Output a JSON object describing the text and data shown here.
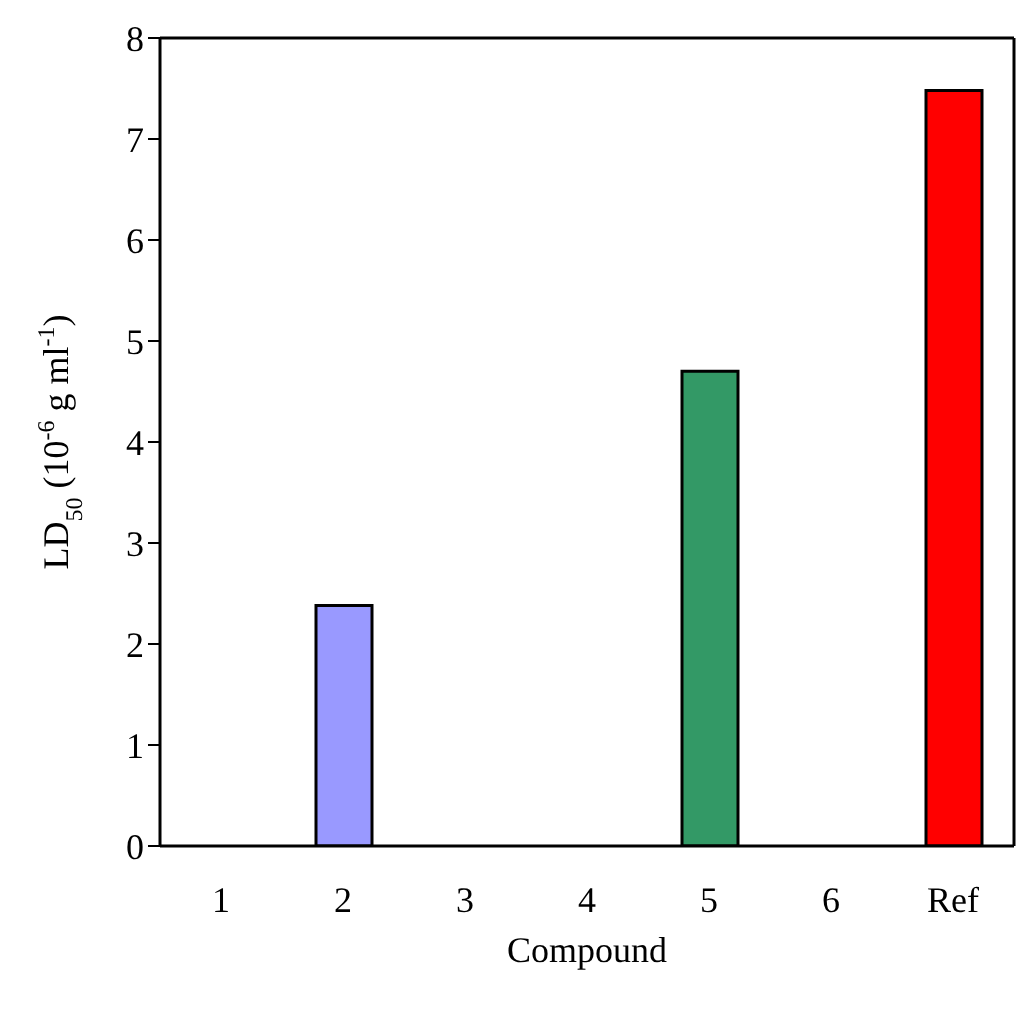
{
  "chart_data": {
    "type": "bar",
    "xlabel": "Compound",
    "ylabel": "LD$_{50}$ (10$^{-6}$ g ml$^{-1}$)",
    "categories": [
      "1",
      "2",
      "3",
      "4",
      "5",
      "6",
      "Ref"
    ],
    "values": [
      null,
      2.38,
      null,
      null,
      4.7,
      null,
      7.48
    ],
    "colors": [
      "#9999ff",
      "#9999ff",
      "#9999ff",
      "#9999ff",
      "#339966",
      "#339966",
      "#ff0000"
    ],
    "ylim": [
      0,
      8
    ],
    "yticks": [
      0,
      1,
      2,
      3,
      4,
      5,
      6,
      7,
      8
    ]
  }
}
